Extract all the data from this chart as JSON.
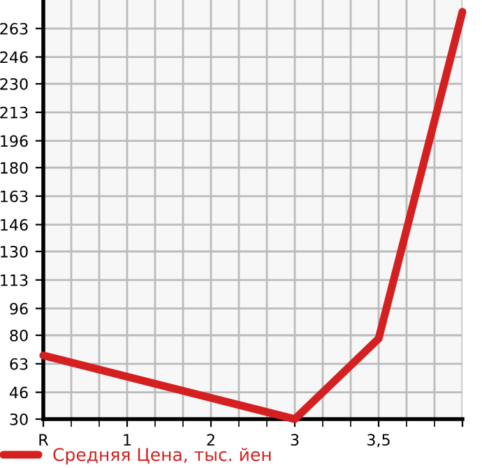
{
  "chart_data": {
    "type": "line",
    "categories": [
      "R",
      "1",
      "2",
      "3",
      "3,5",
      null
    ],
    "series": [
      {
        "name": "Средняя Цена, тыс. йен",
        "color": "#d42020",
        "values": [
          68,
          null,
          null,
          30,
          78,
          273
        ]
      }
    ],
    "ylim": [
      30,
      280
    ],
    "yticks": [
      30,
      46,
      63,
      80,
      96,
      113,
      130,
      146,
      163,
      180,
      196,
      213,
      230,
      246,
      263
    ],
    "grid": true,
    "legend": "bottom",
    "marker": "none",
    "line_style": "solid"
  }
}
